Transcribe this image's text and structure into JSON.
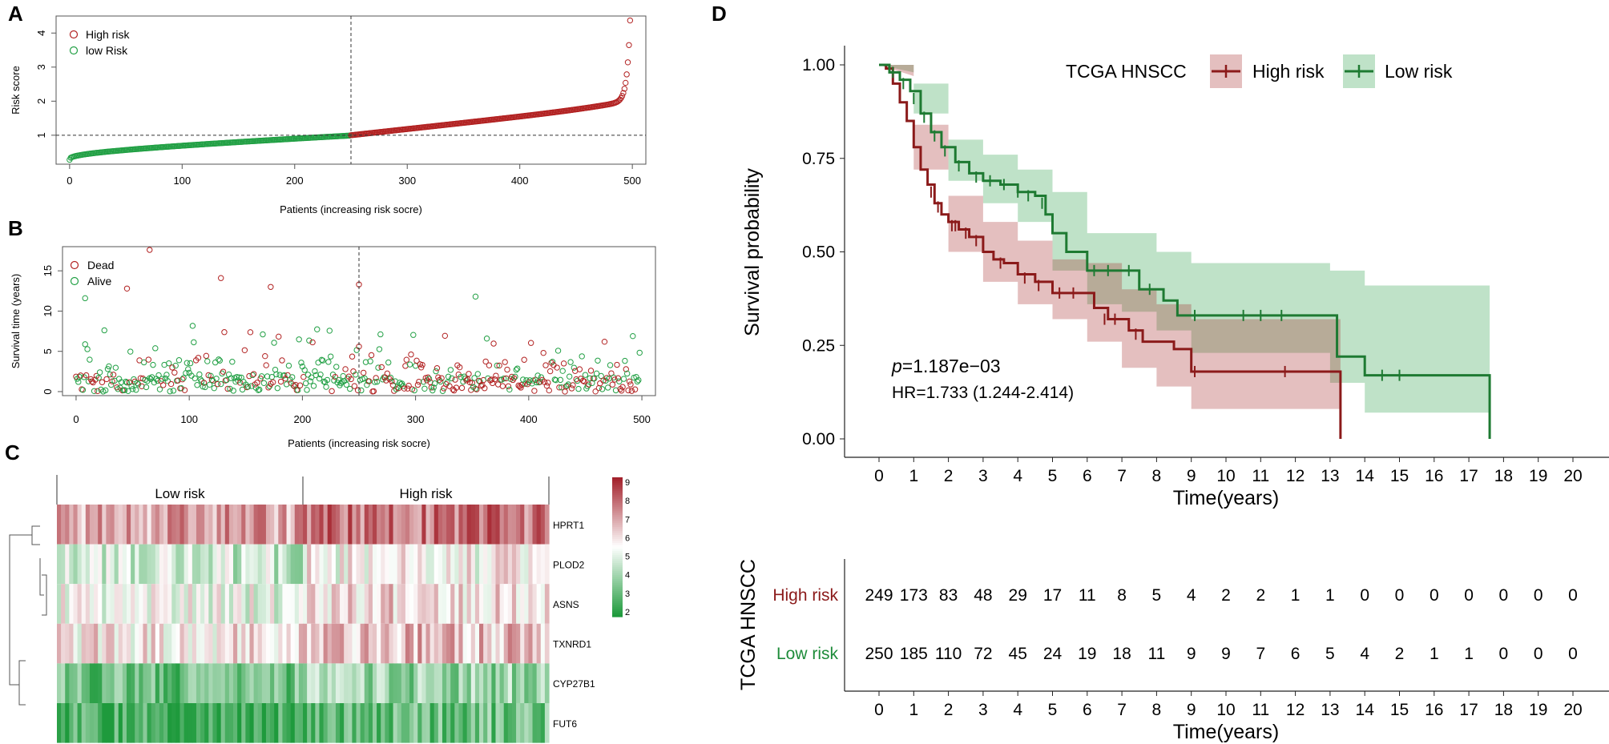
{
  "panels": {
    "a": {
      "label": "A"
    },
    "b": {
      "label": "B"
    },
    "c": {
      "label": "C"
    },
    "d": {
      "label": "D"
    }
  },
  "colors": {
    "high": "#a62a2a",
    "low": "#1e8c3a",
    "highDark": "#8b1a1a",
    "lowDark": "#1e7a32"
  },
  "chart_data": [
    {
      "type": "scatter",
      "id": "risk_score",
      "ylabel": "Risk score",
      "xlabel": "Patients (increasing risk socre)",
      "xticks": [
        0,
        100,
        200,
        300,
        400,
        500
      ],
      "yticks": [
        1,
        2,
        3,
        4
      ],
      "xlim": [
        -12,
        512
      ],
      "ylim": [
        0.15,
        4.5
      ],
      "cutoff_x": 250,
      "cutoff_y": 1,
      "legend": [
        {
          "name": "High risk",
          "color": "#b22222"
        },
        {
          "name": "low Risk",
          "color": "#22a045"
        }
      ],
      "n_low": 250,
      "n_high": 249,
      "low_range": [
        0.28,
        0.99
      ],
      "high_range": [
        1.0,
        4.4
      ]
    },
    {
      "type": "scatter",
      "id": "survival_time",
      "ylabel": "Survival time (years)",
      "xlabel": "Patients (increasing risk socre)",
      "xticks": [
        0,
        100,
        200,
        300,
        400,
        500
      ],
      "yticks": [
        0,
        5,
        10,
        15
      ],
      "xlim": [
        -12,
        512
      ],
      "ylim": [
        -0.5,
        18
      ],
      "cutoff_x": 250,
      "legend": [
        {
          "name": "Dead",
          "color": "#b22222"
        },
        {
          "name": "Alive",
          "color": "#22a045"
        }
      ],
      "highlighted": [
        {
          "x": 8,
          "y": 11.6,
          "status": "alive"
        },
        {
          "x": 45,
          "y": 12.8,
          "status": "dead"
        },
        {
          "x": 65,
          "y": 17.6,
          "status": "dead"
        },
        {
          "x": 128,
          "y": 14.1,
          "status": "dead"
        },
        {
          "x": 172,
          "y": 13.0,
          "status": "dead"
        },
        {
          "x": 250,
          "y": 13.3,
          "status": "dead"
        },
        {
          "x": 353,
          "y": 11.8,
          "status": "alive"
        }
      ]
    },
    {
      "type": "heatmap",
      "id": "expression",
      "groups": [
        "Low risk",
        "High risk"
      ],
      "genes": [
        "HPRT1",
        "PLOD2",
        "ASNS",
        "TXNRD1",
        "CYP27B1",
        "FUT6"
      ],
      "color_scale": {
        "min": 2,
        "max": 9,
        "ticks": [
          2,
          3,
          4,
          5,
          6,
          7,
          8,
          9
        ],
        "low_color": "#1e9a3c",
        "mid_color": "#ffffff",
        "high_color": "#a3212b"
      }
    },
    {
      "type": "line",
      "id": "kaplan_meier",
      "title": "TCGA HNSCC",
      "ylabel": "Survival probability",
      "xlabel": "Time(years)",
      "xticks": [
        0,
        1,
        2,
        3,
        4,
        5,
        6,
        7,
        8,
        9,
        10,
        11,
        12,
        13,
        14,
        15,
        16,
        17,
        18,
        19,
        20
      ],
      "yticks": [
        "0.00",
        "0.25",
        "0.50",
        "0.75",
        "1.00"
      ],
      "xlim": [
        -1,
        21
      ],
      "ylim": [
        0,
        1
      ],
      "pvalue_prefix": "p",
      "pvalue_value": "=1.187e−03",
      "hr": "HR=1.733 (1.244-2.414)",
      "series": [
        {
          "name": "High risk",
          "color": "#8b1a1a",
          "steps": [
            [
              0,
              1.0
            ],
            [
              0.2,
              0.99
            ],
            [
              0.4,
              0.95
            ],
            [
              0.6,
              0.9
            ],
            [
              0.8,
              0.85
            ],
            [
              1.0,
              0.78
            ],
            [
              1.2,
              0.72
            ],
            [
              1.4,
              0.68
            ],
            [
              1.6,
              0.63
            ],
            [
              1.8,
              0.6
            ],
            [
              2.0,
              0.58
            ],
            [
              2.3,
              0.56
            ],
            [
              2.6,
              0.54
            ],
            [
              3.0,
              0.5
            ],
            [
              3.3,
              0.48
            ],
            [
              3.6,
              0.47
            ],
            [
              4.0,
              0.44
            ],
            [
              4.5,
              0.42
            ],
            [
              5.0,
              0.39
            ],
            [
              5.5,
              0.39
            ],
            [
              6.2,
              0.35
            ],
            [
              6.6,
              0.32
            ],
            [
              7.2,
              0.29
            ],
            [
              7.6,
              0.26
            ],
            [
              8.5,
              0.24
            ],
            [
              9.0,
              0.18
            ],
            [
              13.0,
              0.18
            ],
            [
              13.3,
              0.0
            ]
          ],
          "upper": [
            [
              0,
              1.0
            ],
            [
              1.0,
              0.84
            ],
            [
              2.0,
              0.65
            ],
            [
              3.0,
              0.58
            ],
            [
              4.0,
              0.53
            ],
            [
              5.0,
              0.48
            ],
            [
              6.0,
              0.47
            ],
            [
              7.0,
              0.4
            ],
            [
              8.0,
              0.36
            ],
            [
              9.0,
              0.32
            ],
            [
              13.3,
              0.32
            ]
          ],
          "lower": [
            [
              0,
              0.97
            ],
            [
              1.0,
              0.72
            ],
            [
              2.0,
              0.5
            ],
            [
              3.0,
              0.42
            ],
            [
              4.0,
              0.36
            ],
            [
              5.0,
              0.32
            ],
            [
              6.0,
              0.26
            ],
            [
              7.0,
              0.19
            ],
            [
              8.0,
              0.14
            ],
            [
              9.0,
              0.08
            ],
            [
              13.3,
              0.08
            ]
          ],
          "censor": [
            [
              1.5,
              0.66
            ],
            [
              1.7,
              0.62
            ],
            [
              2.1,
              0.57
            ],
            [
              2.2,
              0.57
            ],
            [
              2.5,
              0.55
            ],
            [
              2.8,
              0.53
            ],
            [
              3.5,
              0.47
            ],
            [
              4.2,
              0.43
            ],
            [
              4.6,
              0.41
            ],
            [
              5.2,
              0.39
            ],
            [
              5.6,
              0.39
            ],
            [
              6.5,
              0.32
            ],
            [
              6.8,
              0.32
            ],
            [
              7.4,
              0.28
            ],
            [
              9.1,
              0.18
            ],
            [
              11.7,
              0.18
            ]
          ]
        },
        {
          "name": "Low risk",
          "color": "#1e7a32",
          "steps": [
            [
              0,
              1.0
            ],
            [
              0.3,
              0.98
            ],
            [
              0.6,
              0.96
            ],
            [
              0.9,
              0.93
            ],
            [
              1.2,
              0.87
            ],
            [
              1.5,
              0.82
            ],
            [
              1.8,
              0.78
            ],
            [
              2.2,
              0.74
            ],
            [
              2.6,
              0.71
            ],
            [
              3.0,
              0.69
            ],
            [
              3.5,
              0.68
            ],
            [
              4.0,
              0.66
            ],
            [
              4.5,
              0.65
            ],
            [
              4.8,
              0.6
            ],
            [
              5.0,
              0.55
            ],
            [
              5.4,
              0.5
            ],
            [
              6.0,
              0.45
            ],
            [
              7.0,
              0.45
            ],
            [
              7.5,
              0.4
            ],
            [
              8.0,
              0.4
            ],
            [
              8.2,
              0.37
            ],
            [
              8.6,
              0.33
            ],
            [
              13.0,
              0.33
            ],
            [
              13.2,
              0.22
            ],
            [
              13.6,
              0.22
            ],
            [
              14.0,
              0.17
            ],
            [
              17.6,
              0.17
            ],
            [
              17.6,
              0.0
            ]
          ],
          "upper": [
            [
              0,
              1.0
            ],
            [
              1.0,
              0.95
            ],
            [
              2.0,
              0.8
            ],
            [
              3.0,
              0.76
            ],
            [
              4.0,
              0.72
            ],
            [
              5.0,
              0.66
            ],
            [
              6.0,
              0.55
            ],
            [
              7.0,
              0.55
            ],
            [
              8.0,
              0.5
            ],
            [
              9.0,
              0.47
            ],
            [
              13.0,
              0.45
            ],
            [
              14.0,
              0.41
            ],
            [
              17.6,
              0.41
            ]
          ],
          "lower": [
            [
              0,
              0.98
            ],
            [
              1.0,
              0.87
            ],
            [
              2.0,
              0.69
            ],
            [
              3.0,
              0.63
            ],
            [
              4.0,
              0.58
            ],
            [
              5.0,
              0.45
            ],
            [
              6.0,
              0.36
            ],
            [
              7.0,
              0.34
            ],
            [
              8.0,
              0.29
            ],
            [
              9.0,
              0.23
            ],
            [
              13.0,
              0.15
            ],
            [
              14.0,
              0.07
            ],
            [
              17.6,
              0.07
            ]
          ],
          "censor": [
            [
              0.4,
              0.98
            ],
            [
              0.7,
              0.95
            ],
            [
              1.0,
              0.91
            ],
            [
              1.3,
              0.86
            ],
            [
              1.6,
              0.81
            ],
            [
              1.9,
              0.77
            ],
            [
              2.3,
              0.73
            ],
            [
              2.8,
              0.7
            ],
            [
              3.2,
              0.69
            ],
            [
              3.6,
              0.68
            ],
            [
              4.0,
              0.66
            ],
            [
              4.3,
              0.65
            ],
            [
              4.7,
              0.63
            ],
            [
              6.2,
              0.45
            ],
            [
              6.6,
              0.45
            ],
            [
              7.2,
              0.45
            ],
            [
              7.8,
              0.4
            ],
            [
              9.1,
              0.33
            ],
            [
              10.5,
              0.33
            ],
            [
              11.0,
              0.33
            ],
            [
              11.6,
              0.33
            ],
            [
              14.5,
              0.17
            ],
            [
              15.0,
              0.17
            ]
          ]
        }
      ]
    },
    {
      "type": "table",
      "id": "risk_table",
      "title": "TCGA HNSCC",
      "xlabel": "Time(years)",
      "times": [
        0,
        1,
        2,
        3,
        4,
        5,
        6,
        7,
        8,
        9,
        10,
        11,
        12,
        13,
        14,
        15,
        16,
        17,
        18,
        19,
        20
      ],
      "rows": [
        {
          "name": "High risk",
          "values": [
            249,
            173,
            83,
            48,
            29,
            17,
            11,
            8,
            5,
            4,
            2,
            2,
            1,
            1,
            0,
            0,
            0,
            0,
            0,
            0,
            0
          ]
        },
        {
          "name": "Low risk",
          "values": [
            250,
            185,
            110,
            72,
            45,
            24,
            19,
            18,
            11,
            9,
            9,
            7,
            6,
            5,
            4,
            2,
            1,
            1,
            0,
            0,
            0
          ]
        }
      ]
    }
  ]
}
